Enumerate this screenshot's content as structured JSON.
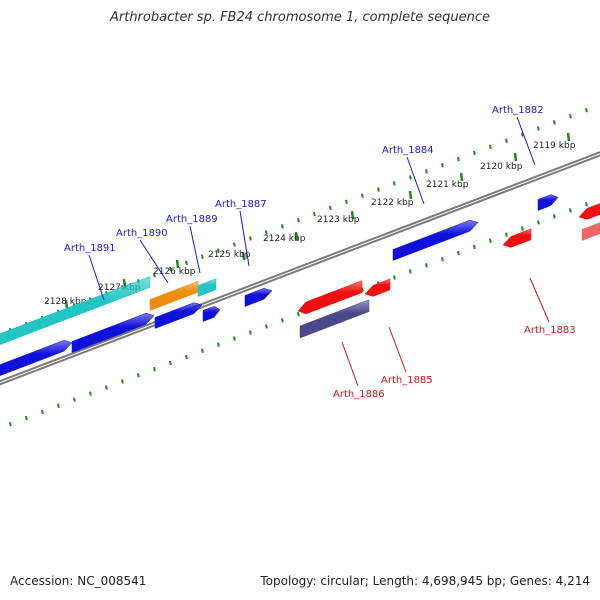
{
  "title": "Arthrobacter sp. FB24 chromosome 1, complete sequence",
  "footer": {
    "accession": "Accession: NC_008541",
    "summary": "Topology: circular; Length: 4,698,945 bp; Genes: 4,214"
  },
  "colors": {
    "backbone": "#7a7a7a",
    "tick": "#228822",
    "forward_label": "#1a1acc",
    "reverse_label": "#cc1a1a",
    "gene_blue": "#1010dd",
    "gene_cyan": "#22c4c4",
    "gene_orange": "#ee8c10",
    "gene_red": "#ee1010",
    "gene_purple": "#4a4888",
    "gene_pink": "#ee6666"
  },
  "scale_ticks": [
    {
      "label": "2128 kbp"
    },
    {
      "label": "2127 kbp"
    },
    {
      "label": "2126 kbp"
    },
    {
      "label": "2125 kbp"
    },
    {
      "label": "2124 kbp"
    },
    {
      "label": "2123 kbp"
    },
    {
      "label": "2122 kbp"
    },
    {
      "label": "2121 kbp"
    },
    {
      "label": "2120 kbp"
    },
    {
      "label": "2119 kbp"
    }
  ],
  "gene_labels": [
    {
      "name": "Arth_1891",
      "strand": "forward"
    },
    {
      "name": "Arth_1890",
      "strand": "forward"
    },
    {
      "name": "Arth_1889",
      "strand": "forward"
    },
    {
      "name": "Arth_1887",
      "strand": "forward"
    },
    {
      "name": "Arth_1884",
      "strand": "forward"
    },
    {
      "name": "Arth_1882",
      "strand": "forward"
    },
    {
      "name": "Arth_1886",
      "strand": "reverse"
    },
    {
      "name": "Arth_1885",
      "strand": "reverse"
    },
    {
      "name": "Arth_1883",
      "strand": "reverse"
    }
  ]
}
